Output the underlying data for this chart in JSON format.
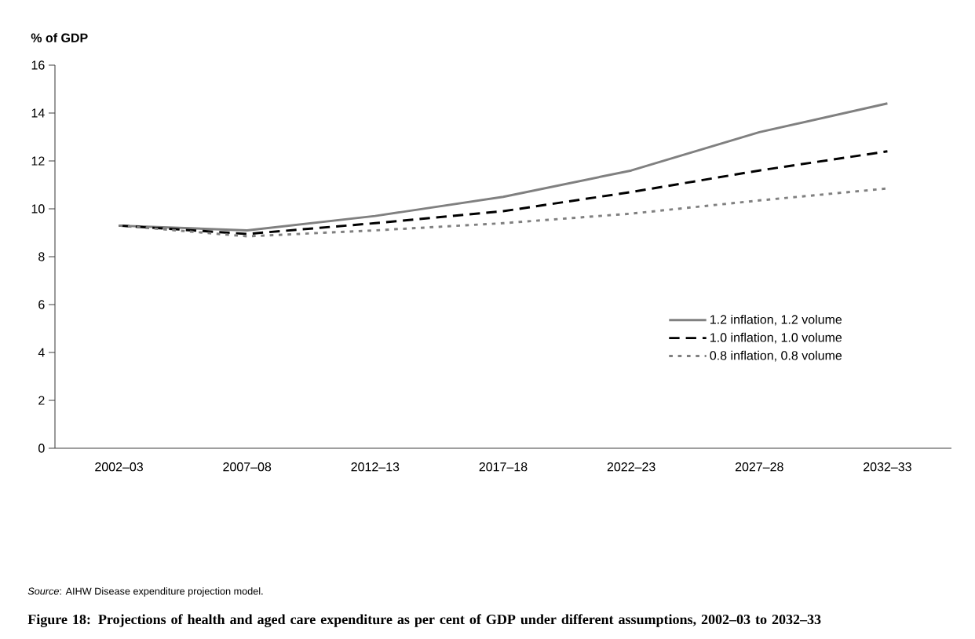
{
  "chart_data": {
    "type": "line",
    "title": "Figure 18: Projections of health and aged care expenditure as per cent of GDP under different assumptions, 2002–03 to 2032–33",
    "ylabel": "% of GDP",
    "annotations": [
      "*Source*: AIHW Disease expenditure projection model."
    ],
    "categories": [
      "2002–03",
      "2007–08",
      "2012–13",
      "2017–18",
      "2022–23",
      "2027–28",
      "2032–33"
    ],
    "ylim": [
      0,
      16
    ],
    "yticks": [
      0,
      2,
      4,
      6,
      8,
      10,
      12,
      14,
      16
    ],
    "legend": "right",
    "grid": false,
    "series": [
      {
        "name": "1.2 inflation, 1.2 volume",
        "color": "#808080",
        "line_style": "solid",
        "values": [
          9.3,
          9.1,
          9.7,
          10.5,
          11.6,
          13.2,
          14.4
        ]
      },
      {
        "name": "1.0 inflation, 1.0 volume",
        "color": "#000000",
        "line_style": "dashed",
        "values": [
          9.3,
          8.95,
          9.4,
          9.9,
          10.7,
          11.6,
          12.4
        ]
      },
      {
        "name": "0.8 inflation, 0.8 volume",
        "color": "#808080",
        "line_style": "dotted",
        "values": [
          9.3,
          8.85,
          9.1,
          9.4,
          9.8,
          10.35,
          10.85
        ]
      }
    ]
  }
}
